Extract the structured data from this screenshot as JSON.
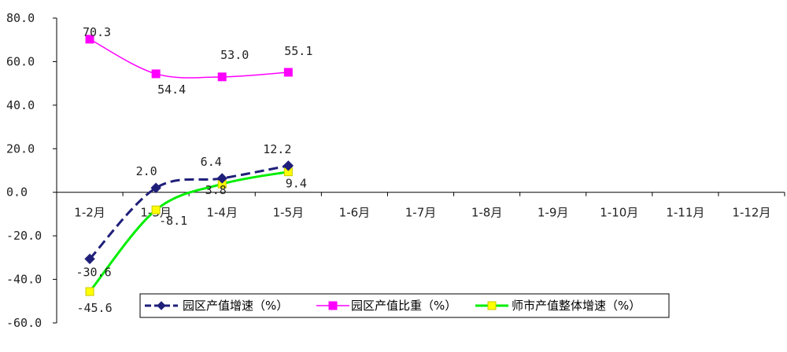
{
  "chart_data": {
    "type": "line",
    "title": "",
    "xlabel": "",
    "ylabel": "",
    "categories": [
      "1-2月",
      "1-3月",
      "1-4月",
      "1-5月",
      "1-6月",
      "1-7月",
      "1-8月",
      "1-9月",
      "1-10月",
      "1-11月",
      "1-12月"
    ],
    "yticks": [
      "80.0",
      "60.0",
      "40.0",
      "20.0",
      "0.0",
      "-20.0",
      "-40.0",
      "-60.0"
    ],
    "ylim": [
      -60,
      80
    ],
    "grid": false,
    "legend_position": "bottom-right",
    "series": [
      {
        "name": "园区产值增速（%）",
        "color": "#1f1f7a",
        "style": "dashed",
        "marker": "diamond",
        "values": [
          -30.6,
          2.0,
          6.4,
          12.2,
          null,
          null,
          null,
          null,
          null,
          null,
          null
        ],
        "labels": [
          "-30.6",
          "2.0",
          "6.4",
          "12.2"
        ]
      },
      {
        "name": "园区产值比重（%）",
        "color": "#ff00ff",
        "style": "solid",
        "marker": "square",
        "values": [
          70.3,
          54.4,
          53.0,
          55.1,
          null,
          null,
          null,
          null,
          null,
          null,
          null
        ],
        "labels": [
          "70.3",
          "54.4",
          "53.0",
          "55.1"
        ]
      },
      {
        "name": "师市产值整体增速（%）",
        "color": "#00ee00",
        "marker_color": "#ffff00",
        "style": "solid",
        "marker": "square",
        "values": [
          -45.6,
          -8.1,
          3.8,
          9.4,
          null,
          null,
          null,
          null,
          null,
          null,
          null
        ],
        "labels": [
          "-45.6",
          "-8.1",
          "3.8",
          "9.4"
        ]
      }
    ]
  }
}
